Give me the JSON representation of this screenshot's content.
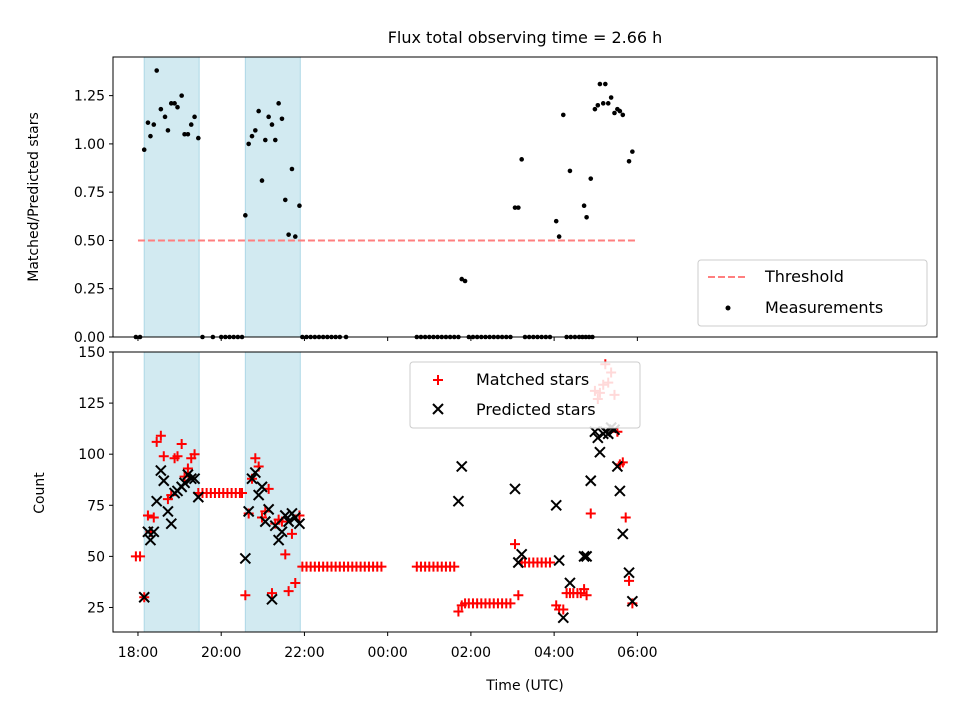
{
  "chart_data": {
    "title": "Flux total observing time = 2.66 h",
    "xlabel": "Time (UTC)",
    "x_units": "hours since 18:00 UTC",
    "x_range": [
      -0.6,
      19.2
    ],
    "x_ticks": [
      {
        "x": 0,
        "label": "18:00"
      },
      {
        "x": 2,
        "label": "20:00"
      },
      {
        "x": 4,
        "label": "22:00"
      },
      {
        "x": 6,
        "label": "00:00"
      },
      {
        "x": 8,
        "label": "02:00"
      },
      {
        "x": 10,
        "label": "04:00"
      },
      {
        "x": 12,
        "label": "06:00"
      }
    ],
    "colors": {
      "band": "#add8e6",
      "threshold": "#ff7f7f",
      "measurement": "#000000",
      "matched": "#ff0000",
      "predicted": "#000000"
    },
    "observing_windows": [
      [
        0.15,
        1.47
      ],
      [
        2.58,
        3.9
      ]
    ],
    "ratio_panel": {
      "type": "scatter",
      "ylabel": "Matched/Predicted stars",
      "ylim": [
        0,
        1.45
      ],
      "yticks": [
        "0.00",
        "0.25",
        "0.50",
        "0.75",
        "1.00",
        "1.25"
      ],
      "threshold": {
        "label": "Threshold",
        "value": 0.5,
        "x_start": 0,
        "x_end": 12
      },
      "measurements_label": "Measurements",
      "measurements": [
        [
          -0.05,
          0
        ],
        [
          0.05,
          0
        ],
        [
          0.15,
          0.97
        ],
        [
          0.24,
          1.11
        ],
        [
          0.3,
          1.04
        ],
        [
          0.38,
          1.1
        ],
        [
          0.45,
          1.38
        ],
        [
          0.55,
          1.18
        ],
        [
          0.65,
          1.14
        ],
        [
          0.72,
          1.07
        ],
        [
          0.8,
          1.21
        ],
        [
          0.88,
          1.21
        ],
        [
          0.95,
          1.19
        ],
        [
          1.05,
          1.25
        ],
        [
          1.12,
          1.05
        ],
        [
          1.2,
          1.05
        ],
        [
          1.28,
          1.1
        ],
        [
          1.36,
          1.14
        ],
        [
          1.45,
          1.03
        ],
        [
          1.55,
          0
        ],
        [
          1.8,
          0
        ],
        [
          2.0,
          0
        ],
        [
          2.1,
          0
        ],
        [
          2.2,
          0
        ],
        [
          2.3,
          0
        ],
        [
          2.4,
          0
        ],
        [
          2.5,
          0
        ],
        [
          2.58,
          0.63
        ],
        [
          2.66,
          1.0
        ],
        [
          2.74,
          1.04
        ],
        [
          2.82,
          1.07
        ],
        [
          2.9,
          1.17
        ],
        [
          2.98,
          0.81
        ],
        [
          3.06,
          1.02
        ],
        [
          3.14,
          1.14
        ],
        [
          3.22,
          1.1
        ],
        [
          3.3,
          1.02
        ],
        [
          3.38,
          1.21
        ],
        [
          3.46,
          1.13
        ],
        [
          3.54,
          0.71
        ],
        [
          3.62,
          0.53
        ],
        [
          3.7,
          0.87
        ],
        [
          3.78,
          0.52
        ],
        [
          3.88,
          0.68
        ],
        [
          3.95,
          0
        ],
        [
          4.05,
          0
        ],
        [
          4.15,
          0
        ],
        [
          4.25,
          0
        ],
        [
          4.35,
          0
        ],
        [
          4.45,
          0
        ],
        [
          4.55,
          0
        ],
        [
          4.65,
          0
        ],
        [
          4.75,
          0
        ],
        [
          4.85,
          0
        ],
        [
          5.0,
          0
        ],
        [
          6.7,
          0
        ],
        [
          6.8,
          0
        ],
        [
          6.9,
          0
        ],
        [
          7.0,
          0
        ],
        [
          7.1,
          0
        ],
        [
          7.2,
          0
        ],
        [
          7.3,
          0
        ],
        [
          7.4,
          0
        ],
        [
          7.5,
          0
        ],
        [
          7.6,
          0
        ],
        [
          7.7,
          0
        ],
        [
          7.78,
          0.3
        ],
        [
          7.86,
          0.29
        ],
        [
          7.95,
          0
        ],
        [
          8.05,
          0
        ],
        [
          8.15,
          0
        ],
        [
          8.25,
          0
        ],
        [
          8.35,
          0
        ],
        [
          8.45,
          0
        ],
        [
          8.55,
          0
        ],
        [
          8.65,
          0
        ],
        [
          8.75,
          0
        ],
        [
          8.85,
          0
        ],
        [
          8.95,
          0
        ],
        [
          9.06,
          0.67
        ],
        [
          9.14,
          0.67
        ],
        [
          9.22,
          0.92
        ],
        [
          9.3,
          0
        ],
        [
          9.4,
          0
        ],
        [
          9.5,
          0
        ],
        [
          9.6,
          0
        ],
        [
          9.7,
          0
        ],
        [
          9.8,
          0
        ],
        [
          9.9,
          0
        ],
        [
          10.05,
          0.6
        ],
        [
          10.12,
          0.52
        ],
        [
          10.22,
          1.15
        ],
        [
          10.3,
          0
        ],
        [
          10.4,
          0
        ],
        [
          10.5,
          0
        ],
        [
          10.38,
          0.86
        ],
        [
          10.72,
          0.68
        ],
        [
          10.78,
          0.62
        ],
        [
          10.88,
          0.82
        ],
        [
          10.98,
          1.18
        ],
        [
          11.05,
          1.2
        ],
        [
          11.1,
          1.31
        ],
        [
          11.18,
          1.21
        ],
        [
          11.23,
          1.31
        ],
        [
          11.3,
          1.21
        ],
        [
          11.37,
          1.24
        ],
        [
          11.45,
          1.16
        ],
        [
          11.52,
          1.18
        ],
        [
          11.58,
          1.17
        ],
        [
          11.65,
          1.15
        ],
        [
          11.8,
          0.91
        ],
        [
          11.88,
          0.96
        ],
        [
          10.6,
          0
        ],
        [
          10.68,
          0
        ],
        [
          10.76,
          0
        ],
        [
          10.84,
          0
        ],
        [
          10.92,
          0
        ]
      ]
    },
    "count_panel": {
      "type": "scatter",
      "ylabel": "Count",
      "ylim": [
        13,
        150
      ],
      "yticks": [
        25,
        50,
        75,
        100,
        125,
        150
      ],
      "matched_label": "Matched stars",
      "predicted_label": "Predicted stars",
      "matched": [
        [
          -0.05,
          50
        ],
        [
          0.05,
          50
        ],
        [
          0.15,
          30
        ],
        [
          0.24,
          70
        ],
        [
          0.3,
          62
        ],
        [
          0.38,
          69
        ],
        [
          0.45,
          106
        ],
        [
          0.55,
          109
        ],
        [
          0.62,
          99
        ],
        [
          0.72,
          78
        ],
        [
          0.8,
          80
        ],
        [
          0.88,
          98
        ],
        [
          0.95,
          99
        ],
        [
          1.05,
          105
        ],
        [
          1.12,
          89
        ],
        [
          1.2,
          93
        ],
        [
          1.28,
          98
        ],
        [
          1.36,
          100
        ],
        [
          1.45,
          81
        ],
        [
          1.55,
          81
        ],
        [
          1.65,
          81
        ],
        [
          1.75,
          81
        ],
        [
          1.85,
          81
        ],
        [
          1.95,
          81
        ],
        [
          2.05,
          81
        ],
        [
          2.15,
          81
        ],
        [
          2.25,
          81
        ],
        [
          2.35,
          81
        ],
        [
          2.45,
          81
        ],
        [
          2.5,
          81
        ],
        [
          2.58,
          31
        ],
        [
          2.66,
          71
        ],
        [
          2.74,
          88
        ],
        [
          2.82,
          98
        ],
        [
          2.9,
          94
        ],
        [
          2.98,
          69
        ],
        [
          3.06,
          72
        ],
        [
          3.14,
          83
        ],
        [
          3.22,
          32
        ],
        [
          3.3,
          66
        ],
        [
          3.38,
          68
        ],
        [
          3.46,
          67
        ],
        [
          3.54,
          51
        ],
        [
          3.62,
          33
        ],
        [
          3.7,
          61
        ],
        [
          3.78,
          37
        ],
        [
          3.88,
          70
        ],
        [
          3.95,
          45
        ],
        [
          4.05,
          45
        ],
        [
          4.15,
          45
        ],
        [
          4.25,
          45
        ],
        [
          4.35,
          45
        ],
        [
          4.45,
          45
        ],
        [
          4.55,
          45
        ],
        [
          4.65,
          45
        ],
        [
          4.75,
          45
        ],
        [
          4.85,
          45
        ],
        [
          4.95,
          45
        ],
        [
          5.05,
          45
        ],
        [
          5.15,
          45
        ],
        [
          5.25,
          45
        ],
        [
          5.35,
          45
        ],
        [
          5.45,
          45
        ],
        [
          5.55,
          45
        ],
        [
          5.65,
          45
        ],
        [
          5.75,
          45
        ],
        [
          5.85,
          45
        ],
        [
          6.7,
          45
        ],
        [
          6.8,
          45
        ],
        [
          6.9,
          45
        ],
        [
          7.0,
          45
        ],
        [
          7.1,
          45
        ],
        [
          7.2,
          45
        ],
        [
          7.3,
          45
        ],
        [
          7.4,
          45
        ],
        [
          7.5,
          45
        ],
        [
          7.6,
          45
        ],
        [
          7.7,
          23
        ],
        [
          7.78,
          26
        ],
        [
          7.86,
          27
        ],
        [
          7.95,
          27
        ],
        [
          8.05,
          27
        ],
        [
          8.15,
          27
        ],
        [
          8.25,
          27
        ],
        [
          8.35,
          27
        ],
        [
          8.45,
          27
        ],
        [
          8.55,
          27
        ],
        [
          8.65,
          27
        ],
        [
          8.75,
          27
        ],
        [
          8.85,
          27
        ],
        [
          8.95,
          27
        ],
        [
          9.06,
          56
        ],
        [
          9.14,
          31
        ],
        [
          9.22,
          47
        ],
        [
          9.3,
          47
        ],
        [
          9.4,
          47
        ],
        [
          9.5,
          47
        ],
        [
          9.6,
          47
        ],
        [
          9.7,
          47
        ],
        [
          9.8,
          47
        ],
        [
          9.9,
          47
        ],
        [
          10.05,
          26
        ],
        [
          10.12,
          24
        ],
        [
          10.22,
          24
        ],
        [
          10.3,
          32
        ],
        [
          10.38,
          32
        ],
        [
          10.46,
          32
        ],
        [
          10.56,
          32
        ],
        [
          10.64,
          32
        ],
        [
          10.72,
          34
        ],
        [
          10.78,
          31
        ],
        [
          10.88,
          71
        ],
        [
          10.98,
          131
        ],
        [
          11.05,
          127
        ],
        [
          11.1,
          130
        ],
        [
          11.18,
          134
        ],
        [
          11.23,
          144
        ],
        [
          11.3,
          135
        ],
        [
          11.37,
          140
        ],
        [
          11.45,
          129
        ],
        [
          11.52,
          111
        ],
        [
          11.58,
          95
        ],
        [
          11.65,
          96
        ],
        [
          11.72,
          69
        ],
        [
          11.8,
          38
        ],
        [
          11.88,
          27
        ]
      ],
      "predicted": [
        [
          0.15,
          30
        ],
        [
          0.24,
          62
        ],
        [
          0.3,
          58
        ],
        [
          0.38,
          62
        ],
        [
          0.45,
          77
        ],
        [
          0.55,
          92
        ],
        [
          0.62,
          87
        ],
        [
          0.72,
          72
        ],
        [
          0.8,
          66
        ],
        [
          0.88,
          81
        ],
        [
          0.95,
          82
        ],
        [
          1.05,
          84
        ],
        [
          1.12,
          86
        ],
        [
          1.2,
          90
        ],
        [
          1.28,
          88
        ],
        [
          1.36,
          88
        ],
        [
          1.45,
          79
        ],
        [
          2.58,
          49
        ],
        [
          2.66,
          72
        ],
        [
          2.74,
          88
        ],
        [
          2.82,
          91
        ],
        [
          2.9,
          80
        ],
        [
          2.98,
          84
        ],
        [
          3.06,
          67
        ],
        [
          3.14,
          73
        ],
        [
          3.22,
          29
        ],
        [
          3.3,
          65
        ],
        [
          3.38,
          58
        ],
        [
          3.46,
          62
        ],
        [
          3.54,
          70
        ],
        [
          3.62,
          67
        ],
        [
          3.7,
          71
        ],
        [
          3.78,
          69
        ],
        [
          3.88,
          66
        ],
        [
          7.7,
          77
        ],
        [
          7.78,
          94
        ],
        [
          9.06,
          83
        ],
        [
          9.14,
          47
        ],
        [
          9.22,
          51
        ],
        [
          10.05,
          75
        ],
        [
          10.12,
          48
        ],
        [
          10.22,
          20
        ],
        [
          10.38,
          37
        ],
        [
          10.72,
          50
        ],
        [
          10.78,
          50
        ],
        [
          10.88,
          87
        ],
        [
          10.98,
          111
        ],
        [
          11.05,
          108
        ],
        [
          11.1,
          101
        ],
        [
          11.18,
          110
        ],
        [
          11.23,
          111
        ],
        [
          11.3,
          110
        ],
        [
          11.37,
          113
        ],
        [
          11.45,
          112
        ],
        [
          11.52,
          94
        ],
        [
          11.58,
          82
        ],
        [
          11.65,
          61
        ],
        [
          11.8,
          42
        ],
        [
          11.88,
          28
        ]
      ]
    }
  }
}
